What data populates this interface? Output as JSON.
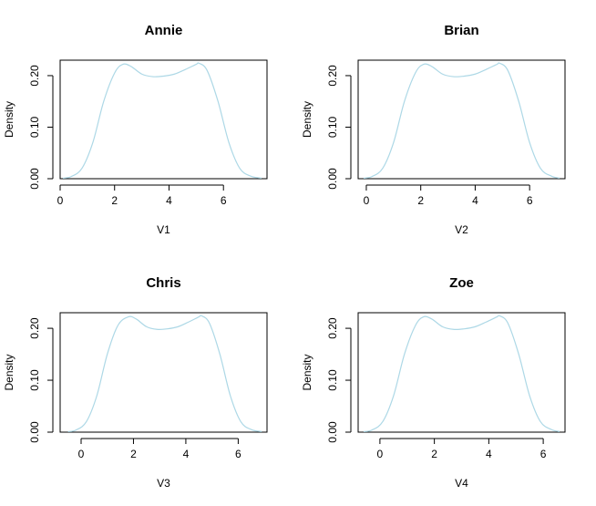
{
  "figure": {
    "layout": "2x2 grid of density plots"
  },
  "chart_data": [
    {
      "type": "line",
      "title": "Annie",
      "xlabel": "V1",
      "ylabel": "Density",
      "xlim": [
        0,
        7.6
      ],
      "ylim": [
        0,
        0.23
      ],
      "xticks": [
        0,
        2,
        4,
        6
      ],
      "yticks": [
        0.0,
        0.1,
        0.2
      ],
      "ytick_labels": [
        "0.00",
        "0.10",
        "0.20"
      ],
      "grid": false,
      "color": "#add8e6",
      "series": [
        {
          "x": [
            0.1,
            0.4,
            0.8,
            1.2,
            1.6,
            2.0,
            2.3,
            2.6,
            3.0,
            3.4,
            3.8,
            4.2,
            4.6,
            5.0,
            5.1,
            5.4,
            5.8,
            6.2,
            6.6,
            7.0,
            7.4
          ],
          "values": [
            0.001,
            0.004,
            0.02,
            0.07,
            0.15,
            0.205,
            0.222,
            0.218,
            0.203,
            0.198,
            0.199,
            0.203,
            0.212,
            0.222,
            0.224,
            0.21,
            0.15,
            0.07,
            0.02,
            0.005,
            0.001
          ]
        }
      ]
    },
    {
      "type": "line",
      "title": "Brian",
      "xlabel": "V2",
      "ylabel": "Density",
      "xlim": [
        -0.3,
        7.3
      ],
      "ylim": [
        0,
        0.23
      ],
      "xticks": [
        0,
        2,
        4,
        6
      ],
      "yticks": [
        0.0,
        0.1,
        0.2
      ],
      "ytick_labels": [
        "0.00",
        "0.10",
        "0.20"
      ],
      "grid": false,
      "color": "#add8e6",
      "series": [
        {
          "x": [
            -0.1,
            0.2,
            0.6,
            1.0,
            1.4,
            1.8,
            2.1,
            2.4,
            2.8,
            3.2,
            3.6,
            4.0,
            4.4,
            4.8,
            4.9,
            5.2,
            5.6,
            6.0,
            6.4,
            6.8,
            7.1
          ],
          "values": [
            0.001,
            0.004,
            0.02,
            0.07,
            0.15,
            0.205,
            0.222,
            0.218,
            0.203,
            0.198,
            0.199,
            0.203,
            0.212,
            0.222,
            0.224,
            0.21,
            0.15,
            0.07,
            0.02,
            0.005,
            0.001
          ]
        }
      ]
    },
    {
      "type": "line",
      "title": "Chris",
      "xlabel": "V3",
      "ylabel": "Density",
      "xlim": [
        -0.8,
        7.1
      ],
      "ylim": [
        0,
        0.23
      ],
      "xticks": [
        0,
        2,
        4,
        6
      ],
      "yticks": [
        0.0,
        0.1,
        0.2
      ],
      "ytick_labels": [
        "0.00",
        "0.10",
        "0.20"
      ],
      "grid": false,
      "color": "#add8e6",
      "series": [
        {
          "x": [
            -0.5,
            -0.2,
            0.2,
            0.6,
            1.0,
            1.4,
            1.8,
            2.1,
            2.5,
            2.9,
            3.3,
            3.7,
            4.1,
            4.5,
            4.6,
            4.9,
            5.3,
            5.7,
            6.1,
            6.5,
            6.9
          ],
          "values": [
            0.001,
            0.004,
            0.02,
            0.07,
            0.15,
            0.205,
            0.222,
            0.218,
            0.203,
            0.198,
            0.199,
            0.203,
            0.212,
            0.222,
            0.224,
            0.21,
            0.15,
            0.07,
            0.02,
            0.005,
            0.001
          ]
        }
      ]
    },
    {
      "type": "line",
      "title": "Zoe",
      "xlabel": "V4",
      "ylabel": "Density",
      "xlim": [
        -0.8,
        6.8
      ],
      "ylim": [
        0,
        0.23
      ],
      "xticks": [
        0,
        2,
        4,
        6
      ],
      "yticks": [
        0.0,
        0.1,
        0.2
      ],
      "ytick_labels": [
        "0.00",
        "0.10",
        "0.20"
      ],
      "grid": false,
      "color": "#add8e6",
      "series": [
        {
          "x": [
            -0.6,
            -0.3,
            0.1,
            0.5,
            0.9,
            1.3,
            1.6,
            1.9,
            2.3,
            2.7,
            3.1,
            3.5,
            3.9,
            4.3,
            4.4,
            4.7,
            5.1,
            5.5,
            5.9,
            6.3,
            6.6
          ],
          "values": [
            0.001,
            0.004,
            0.02,
            0.07,
            0.15,
            0.205,
            0.222,
            0.218,
            0.203,
            0.198,
            0.199,
            0.203,
            0.212,
            0.222,
            0.224,
            0.21,
            0.15,
            0.07,
            0.02,
            0.005,
            0.001
          ]
        }
      ]
    }
  ]
}
